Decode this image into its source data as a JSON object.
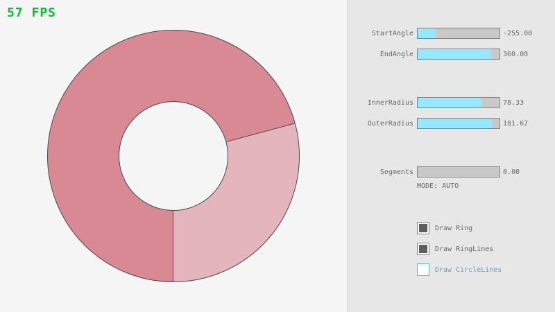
{
  "fps": {
    "label": "57 FPS"
  },
  "ring": {
    "description": "donut ring drawn from StartAngle to EndAngle, overlap region darker",
    "dark_color": "#d98994",
    "light_color": "#e4b5bc",
    "outline_color": "#4a4a4a",
    "light_start_deg": 75,
    "light_end_deg": 180
  },
  "colors": {
    "fps_green": "#00c42e",
    "slider_fill": "#97e8ff",
    "focused_blue": "#5bb2d9"
  },
  "panel": {
    "sliders": [
      {
        "label": "StartAngle",
        "value": "-255.00",
        "fill_pct": 21.7
      },
      {
        "label": "EndAngle",
        "value": "360.00",
        "fill_pct": 90.0
      },
      {
        "label": "InnerRadius",
        "value": "78.33",
        "fill_pct": 78.3
      },
      {
        "label": "OuterRadius",
        "value": "181.67",
        "fill_pct": 90.8
      },
      {
        "label": "Segments",
        "value": "0.00",
        "fill_pct": 0.0
      }
    ],
    "mode_text": "MODE: AUTO",
    "checkboxes": [
      {
        "label": "Draw Ring",
        "checked": true,
        "focused": false
      },
      {
        "label": "Draw RingLines",
        "checked": true,
        "focused": false
      },
      {
        "label": "Draw CircleLines",
        "checked": false,
        "focused": true
      }
    ]
  }
}
